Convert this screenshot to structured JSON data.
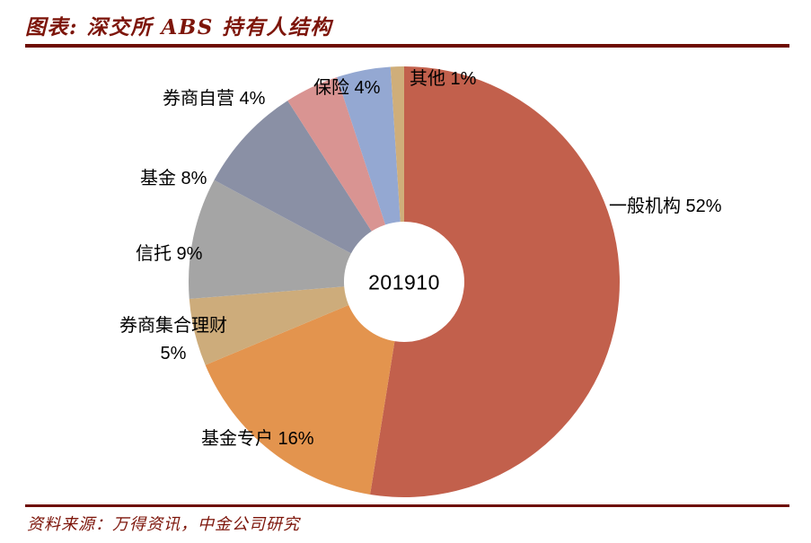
{
  "header": {
    "title": "图表: 深交所 ABS 持有人结构"
  },
  "footer": {
    "source": "资料来源：万得资讯，中金公司研究"
  },
  "theme": {
    "accent_text_color": "#7D150A",
    "rule_color": "#6E0B02",
    "label_color": "#000000",
    "background": "#FFFFFF"
  },
  "chart_data": {
    "type": "pie",
    "subtype": "donut",
    "title": "深交所 ABS 持有人结构",
    "center_label": "201910",
    "unit": "%",
    "start_angle": "12 o'clock, clockwise",
    "legend_position": "none (direct outside labels)",
    "slices": [
      {
        "name": "一般机构",
        "value": 52,
        "label": "一般机构 52%",
        "color": "#C2604C"
      },
      {
        "name": "基金专户",
        "value": 16,
        "label": "基金专户 16%",
        "color": "#E3944E"
      },
      {
        "name": "券商集合理财",
        "value": 5,
        "label": "券商集合理财 5%",
        "color": "#CDAC7B"
      },
      {
        "name": "信托",
        "value": 9,
        "label": "信托 9%",
        "color": "#A5A5A5"
      },
      {
        "name": "基金",
        "value": 8,
        "label": "基金 8%",
        "color": "#8A90A5"
      },
      {
        "name": "券商自营",
        "value": 4,
        "label": "券商自营 4%",
        "color": "#D99492"
      },
      {
        "name": "保险",
        "value": 4,
        "label": "保险 4%",
        "color": "#94A8D2"
      },
      {
        "name": "其他",
        "value": 1,
        "label": "其他 1%",
        "color": "#CFAE7A"
      }
    ]
  }
}
